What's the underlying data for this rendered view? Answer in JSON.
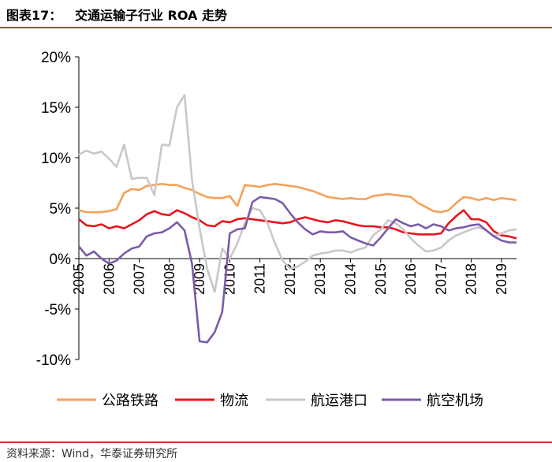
{
  "header": {
    "title": "图表17：   交通运输子行业 ROA 走势"
  },
  "footer": {
    "source": "资料来源：Wind，华泰证券研究所"
  },
  "colors": {
    "rule": "#c0392b",
    "series": [
      "#f4a259",
      "#e8141c",
      "#c8c8c8",
      "#7b5ba8"
    ]
  },
  "chart_data": {
    "type": "line",
    "title": "交通运输子行业 ROA 走势",
    "xlabel": "",
    "ylabel": "",
    "xlim": [
      2005.0,
      2019.5
    ],
    "ylim": [
      -10,
      20
    ],
    "yticks": [
      -10,
      -5,
      0,
      5,
      10,
      15,
      20
    ],
    "ytick_labels": [
      "-10%",
      "-5%",
      "0%",
      "5%",
      "10%",
      "15%",
      "20%"
    ],
    "xticks": [
      2005,
      2006,
      2007,
      2008,
      2009,
      2010,
      2011,
      2012,
      2013,
      2014,
      2015,
      2016,
      2017,
      2018,
      2019
    ],
    "xtick_labels": [
      "2005",
      "2006",
      "2007",
      "2008",
      "2009",
      "2010",
      "2011",
      "2012",
      "2013",
      "2014",
      "2015",
      "2016",
      "2017",
      "2018",
      "2019"
    ],
    "grid": false,
    "legend_position": "bottom",
    "series": [
      {
        "name": "公路铁路",
        "x": [
          2005.0,
          2005.25,
          2005.5,
          2005.75,
          2006.0,
          2006.25,
          2006.5,
          2006.75,
          2007.0,
          2007.25,
          2007.5,
          2007.75,
          2008.0,
          2008.25,
          2008.5,
          2008.75,
          2009.0,
          2009.25,
          2009.5,
          2009.75,
          2010.0,
          2010.25,
          2010.5,
          2010.75,
          2011.0,
          2011.25,
          2011.5,
          2011.75,
          2012.0,
          2012.25,
          2012.5,
          2012.75,
          2013.0,
          2013.25,
          2013.5,
          2013.75,
          2014.0,
          2014.25,
          2014.5,
          2014.75,
          2015.0,
          2015.25,
          2015.5,
          2015.75,
          2016.0,
          2016.25,
          2016.5,
          2016.75,
          2017.0,
          2017.25,
          2017.5,
          2017.75,
          2018.0,
          2018.25,
          2018.5,
          2018.75,
          2019.0,
          2019.25,
          2019.5
        ],
        "y": [
          4.8,
          4.6,
          4.6,
          4.6,
          4.7,
          4.9,
          6.5,
          6.9,
          6.8,
          7.2,
          7.3,
          7.4,
          7.3,
          7.3,
          7.0,
          6.8,
          6.4,
          6.1,
          6.0,
          6.0,
          6.2,
          5.2,
          7.3,
          7.2,
          7.1,
          7.3,
          7.4,
          7.3,
          7.2,
          7.1,
          6.9,
          6.7,
          6.4,
          6.1,
          6.0,
          5.9,
          6.0,
          5.9,
          5.9,
          6.2,
          6.3,
          6.4,
          6.3,
          6.2,
          6.1,
          5.5,
          5.1,
          4.7,
          4.6,
          4.8,
          5.5,
          6.1,
          6.0,
          5.8,
          6.0,
          5.8,
          6.0,
          5.9,
          5.8
        ]
      },
      {
        "name": "物流",
        "x": [
          2005.0,
          2005.25,
          2005.5,
          2005.75,
          2006.0,
          2006.25,
          2006.5,
          2006.75,
          2007.0,
          2007.25,
          2007.5,
          2007.75,
          2008.0,
          2008.25,
          2008.5,
          2008.75,
          2009.0,
          2009.25,
          2009.5,
          2009.75,
          2010.0,
          2010.25,
          2010.5,
          2010.75,
          2011.0,
          2011.25,
          2011.5,
          2011.75,
          2012.0,
          2012.25,
          2012.5,
          2012.75,
          2013.0,
          2013.25,
          2013.5,
          2013.75,
          2014.0,
          2014.25,
          2014.5,
          2014.75,
          2015.0,
          2015.25,
          2015.5,
          2015.75,
          2016.0,
          2016.25,
          2016.5,
          2016.75,
          2017.0,
          2017.25,
          2017.5,
          2017.75,
          2018.0,
          2018.25,
          2018.5,
          2018.75,
          2019.0,
          2019.25,
          2019.5
        ],
        "y": [
          3.9,
          3.3,
          3.2,
          3.4,
          3.0,
          3.2,
          3.0,
          3.4,
          3.8,
          4.4,
          4.7,
          4.4,
          4.3,
          4.8,
          4.5,
          4.1,
          3.8,
          3.3,
          3.2,
          3.7,
          3.6,
          3.9,
          4.0,
          3.9,
          3.8,
          3.7,
          3.6,
          3.5,
          3.6,
          3.9,
          4.1,
          3.9,
          3.7,
          3.6,
          3.8,
          3.7,
          3.5,
          3.3,
          3.2,
          3.2,
          3.1,
          3.1,
          2.9,
          2.6,
          2.5,
          2.4,
          2.4,
          2.4,
          2.5,
          3.5,
          4.2,
          4.8,
          3.9,
          3.9,
          3.6,
          2.7,
          2.3,
          2.2,
          2.0
        ]
      },
      {
        "name": "航运港口",
        "x": [
          2005.0,
          2005.25,
          2005.5,
          2005.75,
          2006.0,
          2006.25,
          2006.5,
          2006.75,
          2007.0,
          2007.25,
          2007.5,
          2007.75,
          2008.0,
          2008.25,
          2008.5,
          2008.75,
          2009.0,
          2009.25,
          2009.5,
          2009.75,
          2010.0,
          2010.25,
          2010.5,
          2010.75,
          2011.0,
          2011.25,
          2011.5,
          2011.75,
          2012.0,
          2012.25,
          2012.5,
          2012.75,
          2013.0,
          2013.25,
          2013.5,
          2013.75,
          2014.0,
          2014.25,
          2014.5,
          2014.75,
          2015.0,
          2015.25,
          2015.5,
          2015.75,
          2016.0,
          2016.25,
          2016.5,
          2016.75,
          2017.0,
          2017.25,
          2017.5,
          2017.75,
          2018.0,
          2018.25,
          2018.5,
          2018.75,
          2019.0,
          2019.25,
          2019.5
        ],
        "y": [
          10.3,
          10.7,
          10.4,
          10.6,
          9.9,
          9.1,
          11.3,
          7.9,
          8.0,
          8.0,
          6.3,
          11.3,
          11.2,
          15.0,
          16.2,
          7.8,
          3.0,
          -1.0,
          -3.3,
          1.0,
          0.0,
          1.5,
          3.5,
          5.0,
          4.8,
          3.5,
          1.5,
          -0.2,
          -1.0,
          -0.8,
          -0.3,
          0.3,
          0.5,
          0.6,
          0.8,
          0.8,
          0.6,
          0.9,
          1.1,
          2.3,
          2.9,
          3.8,
          3.5,
          2.9,
          2.0,
          1.3,
          0.7,
          0.8,
          1.1,
          1.8,
          2.3,
          2.6,
          2.9,
          3.1,
          2.8,
          2.2,
          2.5,
          2.8,
          2.9
        ]
      },
      {
        "name": "航空机场",
        "x": [
          2005.0,
          2005.25,
          2005.5,
          2005.75,
          2006.0,
          2006.25,
          2006.5,
          2006.75,
          2007.0,
          2007.25,
          2007.5,
          2007.75,
          2008.0,
          2008.25,
          2008.5,
          2008.75,
          2009.0,
          2009.25,
          2009.5,
          2009.75,
          2010.0,
          2010.25,
          2010.5,
          2010.75,
          2011.0,
          2011.25,
          2011.5,
          2011.75,
          2012.0,
          2012.25,
          2012.5,
          2012.75,
          2013.0,
          2013.25,
          2013.5,
          2013.75,
          2014.0,
          2014.25,
          2014.5,
          2014.75,
          2015.0,
          2015.25,
          2015.5,
          2015.75,
          2016.0,
          2016.25,
          2016.5,
          2016.75,
          2017.0,
          2017.25,
          2017.5,
          2017.75,
          2018.0,
          2018.25,
          2018.5,
          2018.75,
          2019.0,
          2019.25,
          2019.5
        ],
        "y": [
          1.2,
          0.3,
          0.7,
          0.0,
          -0.5,
          -0.2,
          0.5,
          1.0,
          1.2,
          2.2,
          2.5,
          2.6,
          3.0,
          3.6,
          2.8,
          -0.5,
          -8.2,
          -8.3,
          -7.3,
          -5.3,
          2.5,
          2.9,
          3.0,
          5.6,
          6.1,
          6.0,
          5.9,
          5.5,
          4.5,
          3.6,
          2.9,
          2.4,
          2.7,
          2.6,
          2.6,
          2.7,
          2.1,
          1.8,
          1.5,
          1.3,
          2.1,
          3.0,
          3.9,
          3.5,
          3.2,
          3.4,
          3.0,
          3.4,
          3.2,
          2.8,
          3.0,
          3.1,
          3.3,
          3.4,
          2.8,
          2.2,
          1.8,
          1.6,
          1.6
        ]
      }
    ]
  }
}
